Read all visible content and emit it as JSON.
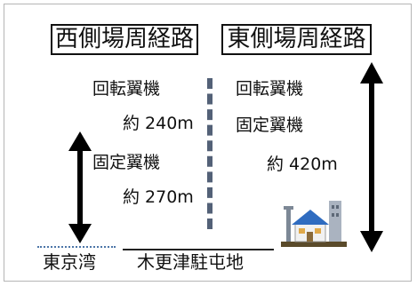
{
  "headers": {
    "west_route": "西側場周経路",
    "east_route": "東側場周経路"
  },
  "west": {
    "rotary_label": "回転翼機",
    "rotary_altitude": "約 240m",
    "fixed_label": "固定翼機",
    "fixed_altitude": "約 270m"
  },
  "east": {
    "rotary_label": "回転翼機",
    "fixed_label": "固定翼機",
    "altitude": "約 420m"
  },
  "places": {
    "bay": "東京湾",
    "base": "木更津駐屯地"
  },
  "icons": [
    "double-headed-arrow-icon",
    "houses-icon"
  ],
  "colors": {
    "separator": "#536177",
    "bay_line": "#4d76a8",
    "house_roof": "#2f6cc0"
  }
}
